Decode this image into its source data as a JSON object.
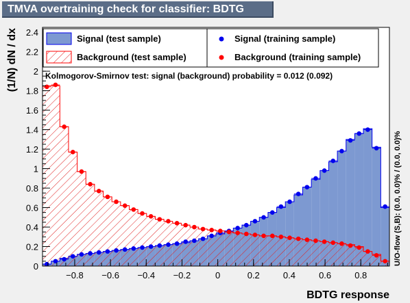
{
  "title": "TMVA overtraining check for classifier: BDTG",
  "chart_data": {
    "type": "histogram",
    "xlabel": "BDTG response",
    "ylabel": "(1/N) dN / dx",
    "xlim": [
      -0.98,
      0.96
    ],
    "ylim": [
      0,
      2.45
    ],
    "xticks": [
      -0.8,
      -0.6,
      -0.4,
      -0.2,
      0,
      0.2,
      0.4,
      0.6,
      0.8
    ],
    "xtick_labels": [
      "−0.8",
      "−0.6",
      "−0.4",
      "−0.2",
      "0",
      "0.2",
      "0.4",
      "0.6",
      "0.8"
    ],
    "yticks": [
      0,
      0.2,
      0.4,
      0.6,
      0.8,
      1,
      1.2,
      1.4,
      1.6,
      1.8,
      2,
      2.2,
      2.4
    ],
    "ytick_labels": [
      "0",
      "0.2",
      "0.4",
      "0.6",
      "0.8",
      "1",
      "1.2",
      "1.4",
      "1.6",
      "1.8",
      "2",
      "2.2",
      "2.4"
    ],
    "bin_edges_start": -0.98,
    "bin_width": 0.0485,
    "series": [
      {
        "name": "Signal (test sample)",
        "style": "filled-blue",
        "values": [
          0.02,
          0.05,
          0.08,
          0.1,
          0.12,
          0.13,
          0.14,
          0.15,
          0.16,
          0.17,
          0.18,
          0.19,
          0.2,
          0.21,
          0.22,
          0.23,
          0.24,
          0.26,
          0.28,
          0.31,
          0.33,
          0.36,
          0.39,
          0.42,
          0.46,
          0.5,
          0.55,
          0.6,
          0.66,
          0.73,
          0.81,
          0.89,
          0.98,
          1.07,
          1.18,
          1.3,
          1.36,
          1.41,
          1.22,
          0.6
        ]
      },
      {
        "name": "Background (test sample)",
        "style": "hatched-red",
        "values": [
          1.85,
          1.85,
          1.43,
          1.17,
          0.97,
          0.84,
          0.77,
          0.71,
          0.66,
          0.62,
          0.58,
          0.54,
          0.51,
          0.48,
          0.46,
          0.44,
          0.42,
          0.4,
          0.38,
          0.37,
          0.36,
          0.35,
          0.34,
          0.33,
          0.32,
          0.31,
          0.31,
          0.3,
          0.29,
          0.28,
          0.27,
          0.26,
          0.25,
          0.24,
          0.23,
          0.22,
          0.2,
          0.15,
          0.12,
          0.05
        ]
      },
      {
        "name": "Signal (training sample)",
        "style": "markers-blue",
        "values": [
          0.02,
          0.05,
          0.07,
          0.1,
          0.12,
          0.13,
          0.14,
          0.15,
          0.16,
          0.17,
          0.18,
          0.19,
          0.2,
          0.21,
          0.22,
          0.23,
          0.25,
          0.26,
          0.28,
          0.31,
          0.34,
          0.36,
          0.39,
          0.42,
          0.46,
          0.5,
          0.55,
          0.61,
          0.66,
          0.74,
          0.81,
          0.9,
          0.98,
          1.08,
          1.18,
          1.29,
          1.36,
          1.4,
          1.21,
          0.61
        ]
      },
      {
        "name": "Background (training sample)",
        "style": "markers-red",
        "values": [
          1.84,
          1.86,
          1.43,
          1.17,
          0.97,
          0.84,
          0.77,
          0.71,
          0.66,
          0.62,
          0.58,
          0.54,
          0.51,
          0.48,
          0.46,
          0.44,
          0.42,
          0.4,
          0.38,
          0.37,
          0.36,
          0.35,
          0.34,
          0.33,
          0.32,
          0.31,
          0.31,
          0.3,
          0.29,
          0.28,
          0.27,
          0.26,
          0.25,
          0.24,
          0.23,
          0.21,
          0.19,
          0.15,
          0.11,
          0.05
        ]
      }
    ]
  },
  "legend": {
    "signal_test": "Signal (test sample)",
    "background_test": "Background (test sample)",
    "signal_train": "Signal (training sample)",
    "background_train": "Background (training sample)"
  },
  "ks_text": "Kolmogorov-Smirnov test: signal (background) probability = 0.012 (0.092)",
  "overflow_text": "U/O-flow (S,B): (0.0, 0.0)% / (0.0, 0.0)%",
  "colors": {
    "signal_fill": "#7d99d1",
    "signal_line": "#0000ee",
    "background_line": "#ff0000",
    "background_hatch": "#e02020",
    "frame": "#000000",
    "canvas": "#f0f0f0",
    "plot_bg": "#ffffff",
    "title_bg": "#5b6d87"
  }
}
